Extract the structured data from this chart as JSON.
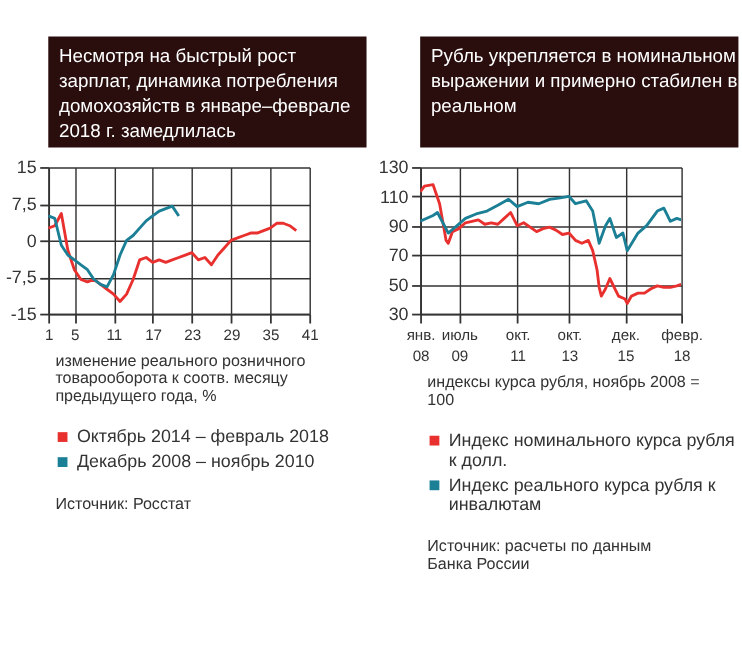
{
  "chart_data": [
    {
      "type": "line",
      "title": "Несмотря на быстрый рост зарплат, динамика потребления домохозяйств в январе–феврале 2018 г. замедлилась",
      "xlim": [
        1,
        41
      ],
      "xticks": [
        1,
        5,
        11,
        17,
        23,
        29,
        35,
        41
      ],
      "ylim": [
        -15,
        15
      ],
      "yticks": [
        {
          "value": -15,
          "label": "-15"
        },
        {
          "value": -7.5,
          "label": "-7,5"
        },
        0,
        {
          "value": 7.5,
          "label": "7,5"
        },
        15
      ],
      "grid": true,
      "legend": "bottom",
      "series": [
        {
          "name": "Октябрь 2014 – февраль 2018",
          "color": "#e8312f",
          "x": [
            1,
            2,
            3,
            4,
            5,
            6,
            7,
            8,
            9,
            10,
            11,
            12,
            13,
            14,
            15,
            16,
            17,
            18,
            19,
            20,
            21,
            22,
            23,
            24,
            25,
            26,
            27,
            28,
            29,
            30,
            31,
            32,
            33,
            34,
            35,
            36,
            37,
            38,
            39
          ],
          "values": [
            2.5,
            3,
            5.5,
            -2,
            -6,
            -8,
            -8.5,
            -8,
            -9,
            -10,
            -11,
            -12.5,
            -11,
            -8,
            -4,
            -3.5,
            -4.5,
            -4,
            -4.5,
            -4,
            -3.5,
            -3,
            -2.5,
            -4,
            -3.5,
            -5,
            -3,
            -1.5,
            0,
            0.5,
            1,
            1.5,
            1.5,
            2,
            2.5,
            3.5,
            3.5,
            3,
            2
          ]
        },
        {
          "name": "Декабрь 2008 – ноябрь 2010",
          "color": "#1b7f95",
          "x": [
            1,
            2,
            3,
            4,
            5,
            6,
            7,
            8,
            9,
            10,
            11,
            12,
            13,
            14,
            15,
            16,
            17,
            18,
            19,
            20,
            21
          ],
          "values": [
            5,
            4.5,
            -1,
            -3,
            -4,
            -5,
            -6,
            -8,
            -9,
            -9.5,
            -7,
            -3,
            0,
            1,
            2.5,
            4,
            5,
            6,
            6.5,
            7,
            5
          ]
        }
      ],
      "annotations": [
        "изменение реального розничного товарооборота к соотв. месяцу предыдущего года, %",
        "Источник: Росстат"
      ]
    },
    {
      "type": "line",
      "title": "Рубль укрепляется в номинальном выражении и примерно стабилен в реальном",
      "xlim": [
        "2008-01",
        "2018-02"
      ],
      "xticks": [
        {
          "value": "2008-01",
          "label": "янв. 08"
        },
        {
          "value": "2009-07",
          "label": "июль 09"
        },
        {
          "value": "2011-10",
          "label": "окт. 11"
        },
        {
          "value": "2013-10",
          "label": "окт. 13"
        },
        {
          "value": "2015-12",
          "label": "дек. 15"
        },
        {
          "value": "2018-02",
          "label": "февр. 18"
        }
      ],
      "ylim": [
        30,
        130
      ],
      "yticks": [
        30,
        50,
        70,
        90,
        110,
        130
      ],
      "grid": true,
      "legend": "bottom",
      "series": [
        {
          "name": "Индекс номинального курса рубля к долл.",
          "color": "#e8312f",
          "x": [
            "2008-01",
            "2008-03",
            "2008-07",
            "2008-10",
            "2009-01",
            "2009-02",
            "2009-04",
            "2009-07",
            "2009-10",
            "2010-01",
            "2010-04",
            "2010-07",
            "2010-10",
            "2011-01",
            "2011-04",
            "2011-07",
            "2011-10",
            "2012-01",
            "2012-04",
            "2012-07",
            "2012-10",
            "2013-01",
            "2013-04",
            "2013-07",
            "2013-10",
            "2014-01",
            "2014-04",
            "2014-07",
            "2014-09",
            "2014-11",
            "2014-12",
            "2015-01",
            "2015-03",
            "2015-05",
            "2015-07",
            "2015-09",
            "2015-12",
            "2016-01",
            "2016-03",
            "2016-06",
            "2016-09",
            "2016-12",
            "2017-03",
            "2017-06",
            "2017-09",
            "2017-12",
            "2018-02"
          ],
          "values": [
            113,
            117,
            118,
            105,
            80,
            78,
            86,
            88,
            92,
            93,
            94,
            91,
            92,
            91,
            95,
            99,
            90,
            92,
            89,
            86,
            88,
            89,
            87,
            84,
            85,
            80,
            78,
            80,
            73,
            60,
            48,
            42,
            47,
            54,
            48,
            42,
            40,
            37,
            42,
            44,
            44,
            47,
            49,
            48,
            48,
            49,
            50
          ]
        },
        {
          "name": "Индекс реального курса рубля к инвалютам",
          "color": "#1b7f95",
          "x": [
            "2008-01",
            "2008-07",
            "2008-09",
            "2009-02",
            "2009-06",
            "2009-10",
            "2010-03",
            "2010-08",
            "2011-01",
            "2011-06",
            "2011-10",
            "2012-03",
            "2012-08",
            "2013-01",
            "2013-06",
            "2013-10",
            "2014-01",
            "2014-06",
            "2014-09",
            "2014-12",
            "2015-03",
            "2015-05",
            "2015-08",
            "2015-11",
            "2016-01",
            "2016-06",
            "2016-10",
            "2017-03",
            "2017-06",
            "2017-09",
            "2017-12",
            "2018-02"
          ],
          "values": [
            93,
            97,
            99,
            85,
            90,
            95,
            98,
            100,
            104,
            108,
            103,
            106,
            105,
            108,
            109,
            110,
            105,
            107,
            100,
            78,
            90,
            95,
            82,
            85,
            73,
            85,
            90,
            100,
            102,
            93,
            95,
            94
          ]
        }
      ],
      "annotations": [
        "индексы курса рубля, ноябрь 2008 = 100",
        "Источник: расчеты по данным Банка России"
      ]
    }
  ]
}
